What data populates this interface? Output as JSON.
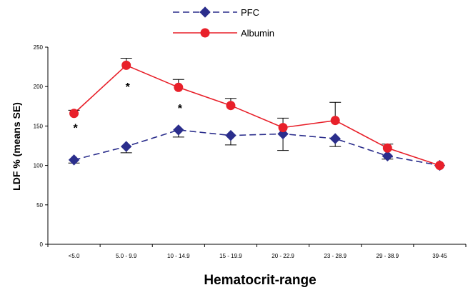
{
  "chart_data": {
    "type": "line",
    "xlabel": "Hematocrit-range",
    "ylabel": "LDF % (means SE)",
    "categories": [
      "<5.0",
      "5.0 - 9.9",
      "10 - 14.9",
      "15 - 19.9",
      "20 - 22.9",
      "23 - 28.9",
      "29 - 38.9",
      "39-45"
    ],
    "ylim": [
      0,
      250
    ],
    "yticks": [
      0,
      50,
      100,
      150,
      200,
      250
    ],
    "legend_position": "top",
    "series": [
      {
        "name": "PFC",
        "color": "#2b2e8c",
        "line_style": "dashed",
        "marker": "diamond",
        "values": [
          107,
          124,
          145,
          138,
          140,
          134,
          112,
          100
        ],
        "error_plus": [
          0,
          0,
          0,
          0,
          0,
          0,
          0,
          0
        ],
        "error_minus": [
          4,
          8,
          9,
          12,
          21,
          10,
          4,
          0
        ]
      },
      {
        "name": "Albumin",
        "color": "#e8202a",
        "line_style": "solid",
        "marker": "circle",
        "values": [
          166,
          227,
          199,
          176,
          148,
          157,
          122,
          100
        ],
        "error_plus": [
          4,
          9,
          10,
          9,
          12,
          23,
          5,
          0
        ],
        "error_minus": [
          0,
          0,
          0,
          0,
          0,
          0,
          0,
          0
        ]
      }
    ],
    "annotations": [
      {
        "text": "*",
        "category_index": 0,
        "value": 148
      },
      {
        "text": "*",
        "category_index": 1,
        "value": 200
      },
      {
        "text": "*",
        "category_index": 2,
        "value": 173
      }
    ]
  }
}
